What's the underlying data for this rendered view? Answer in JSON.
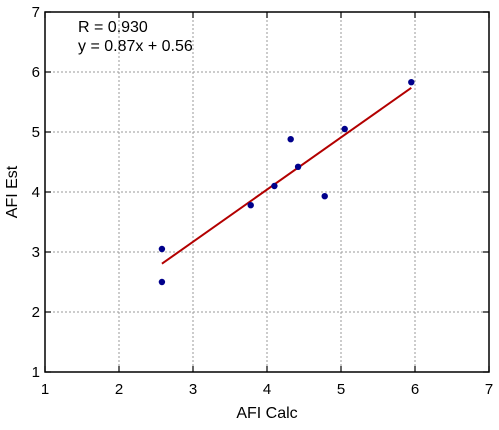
{
  "chart_data": {
    "type": "scatter",
    "xlabel": "AFI Calc",
    "ylabel": "AFI Est",
    "xlim": [
      1,
      7
    ],
    "ylim": [
      1,
      7
    ],
    "xticks": [
      1,
      2,
      3,
      4,
      5,
      6,
      7
    ],
    "yticks": [
      1,
      2,
      3,
      4,
      5,
      6,
      7
    ],
    "grid": true,
    "annotations": [
      "R = 0.930",
      "y = 0.87x + 0.56"
    ],
    "points": [
      {
        "x": 2.58,
        "y": 3.05
      },
      {
        "x": 2.58,
        "y": 2.5
      },
      {
        "x": 3.78,
        "y": 3.78
      },
      {
        "x": 4.1,
        "y": 4.1
      },
      {
        "x": 4.32,
        "y": 4.88
      },
      {
        "x": 4.42,
        "y": 4.42
      },
      {
        "x": 4.78,
        "y": 3.93
      },
      {
        "x": 5.05,
        "y": 5.05
      },
      {
        "x": 5.95,
        "y": 5.83
      }
    ],
    "fit": {
      "slope": 0.87,
      "intercept": 0.56,
      "x_range": [
        2.58,
        5.95
      ]
    },
    "colors": {
      "points": "#00008b",
      "fit_line": "#b30000"
    }
  }
}
